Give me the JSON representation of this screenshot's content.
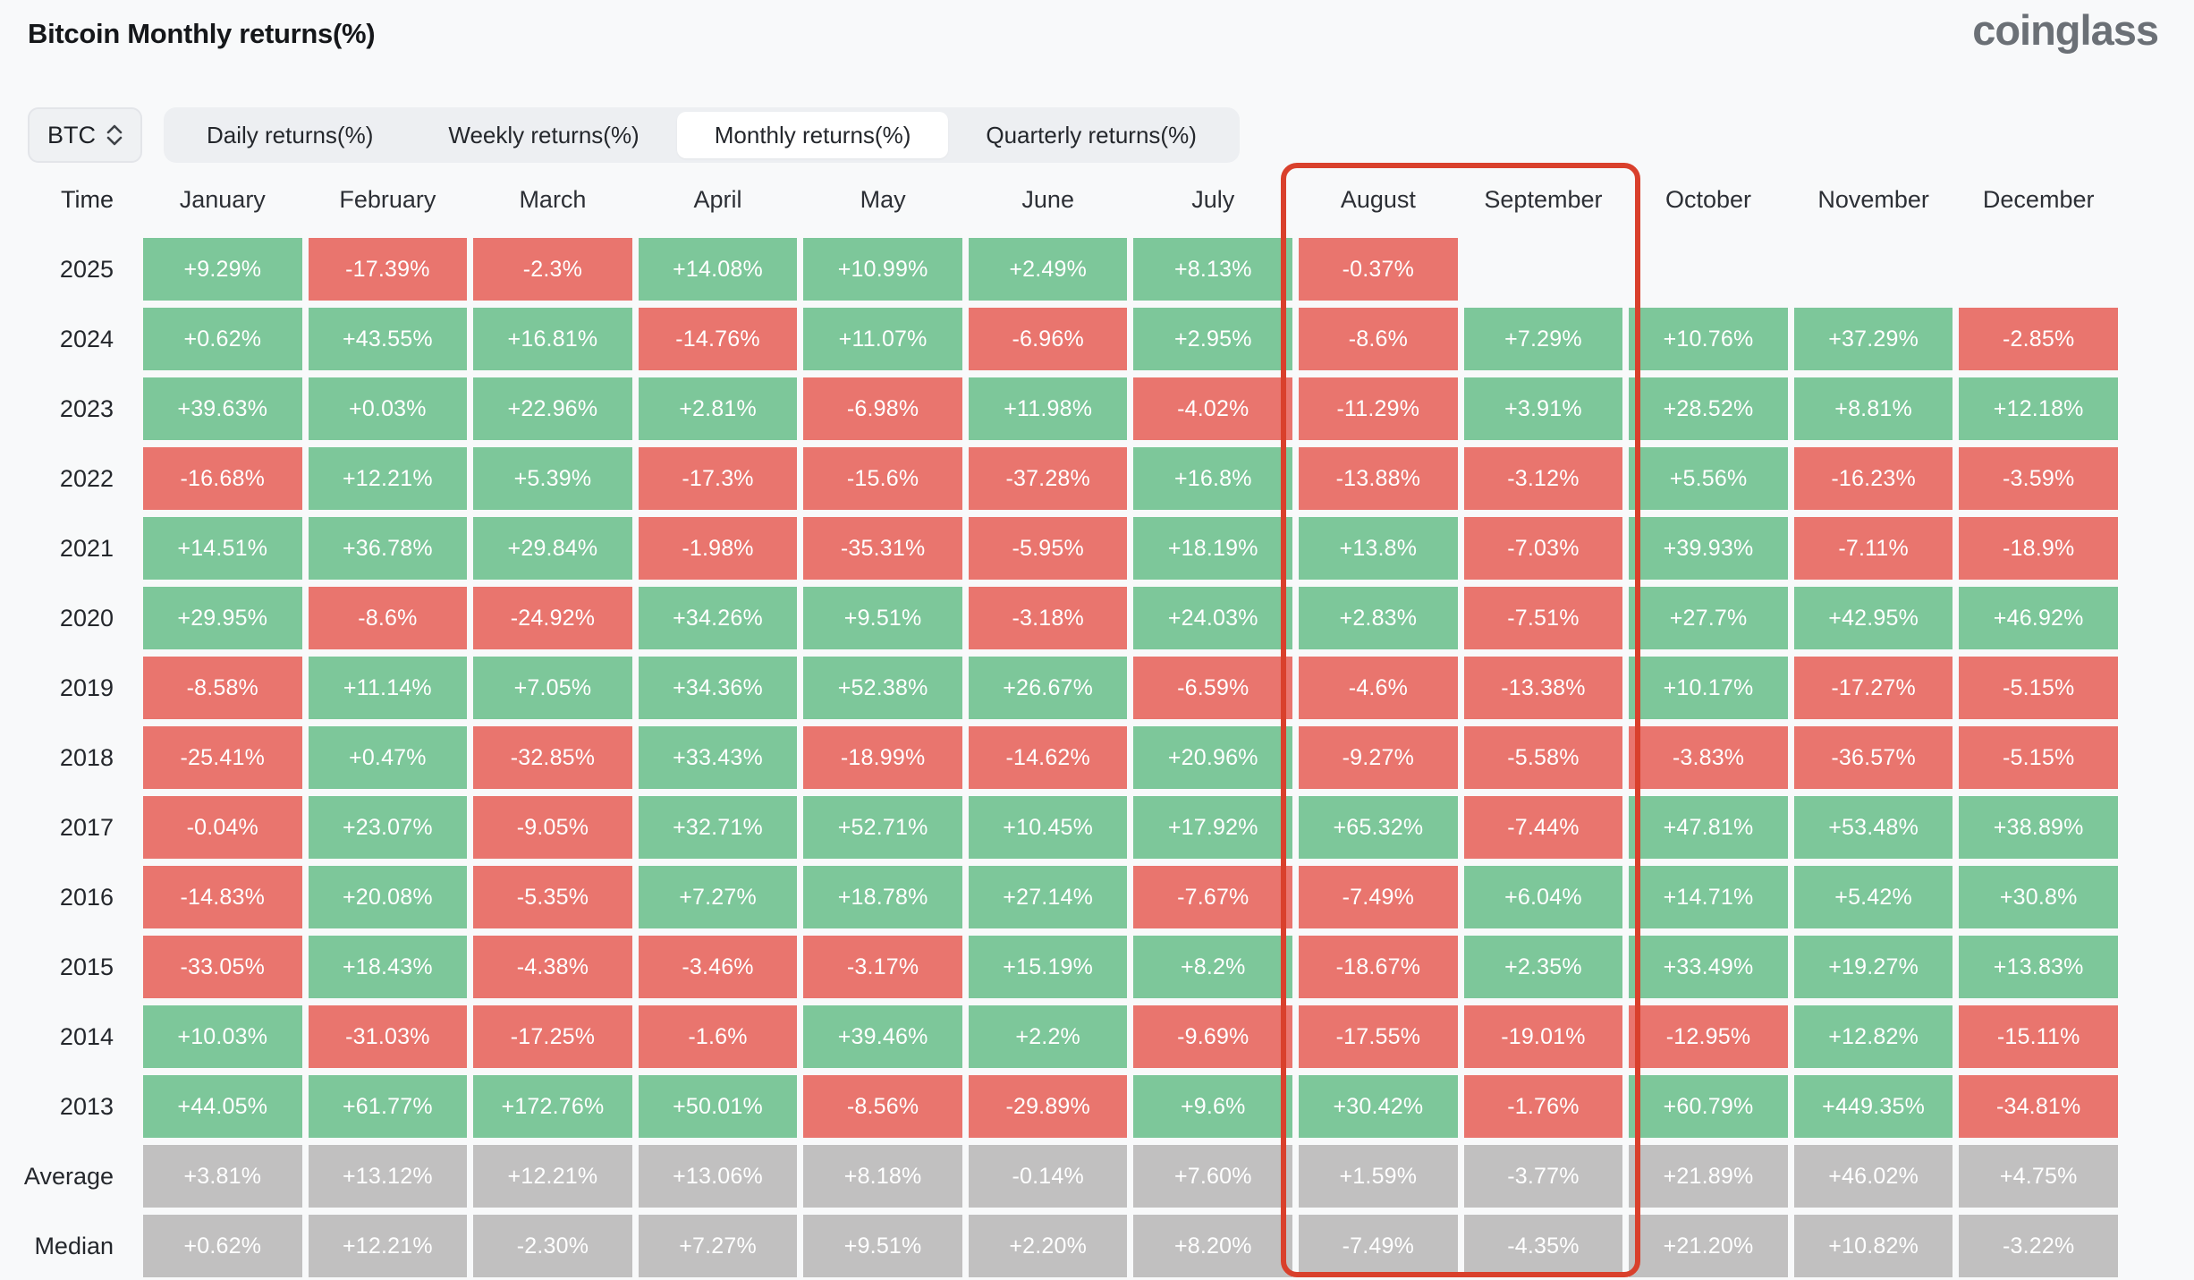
{
  "page": {
    "title": "Bitcoin Monthly returns(%)",
    "logo_text": "coinglass"
  },
  "controls": {
    "symbol_select": {
      "value": "BTC"
    },
    "tabs": [
      {
        "label": "Daily returns(%)",
        "active": false
      },
      {
        "label": "Weekly returns(%)",
        "active": false
      },
      {
        "label": "Monthly returns(%)",
        "active": true
      },
      {
        "label": "Quarterly returns(%)",
        "active": false
      }
    ]
  },
  "chart_data": {
    "type": "heatmap",
    "title": "Bitcoin Monthly returns(%)",
    "row_header_label": "Time",
    "columns": [
      "January",
      "February",
      "March",
      "April",
      "May",
      "June",
      "July",
      "August",
      "September",
      "October",
      "November",
      "December"
    ],
    "rows": [
      {
        "label": "2025",
        "type": "year",
        "values": [
          "+9.29%",
          "-17.39%",
          "-2.3%",
          "+14.08%",
          "+10.99%",
          "+2.49%",
          "+8.13%",
          "-0.37%",
          null,
          null,
          null,
          null
        ]
      },
      {
        "label": "2024",
        "type": "year",
        "values": [
          "+0.62%",
          "+43.55%",
          "+16.81%",
          "-14.76%",
          "+11.07%",
          "-6.96%",
          "+2.95%",
          "-8.6%",
          "+7.29%",
          "+10.76%",
          "+37.29%",
          "-2.85%"
        ]
      },
      {
        "label": "2023",
        "type": "year",
        "values": [
          "+39.63%",
          "+0.03%",
          "+22.96%",
          "+2.81%",
          "-6.98%",
          "+11.98%",
          "-4.02%",
          "-11.29%",
          "+3.91%",
          "+28.52%",
          "+8.81%",
          "+12.18%"
        ]
      },
      {
        "label": "2022",
        "type": "year",
        "values": [
          "-16.68%",
          "+12.21%",
          "+5.39%",
          "-17.3%",
          "-15.6%",
          "-37.28%",
          "+16.8%",
          "-13.88%",
          "-3.12%",
          "+5.56%",
          "-16.23%",
          "-3.59%"
        ]
      },
      {
        "label": "2021",
        "type": "year",
        "values": [
          "+14.51%",
          "+36.78%",
          "+29.84%",
          "-1.98%",
          "-35.31%",
          "-5.95%",
          "+18.19%",
          "+13.8%",
          "-7.03%",
          "+39.93%",
          "-7.11%",
          "-18.9%"
        ]
      },
      {
        "label": "2020",
        "type": "year",
        "values": [
          "+29.95%",
          "-8.6%",
          "-24.92%",
          "+34.26%",
          "+9.51%",
          "-3.18%",
          "+24.03%",
          "+2.83%",
          "-7.51%",
          "+27.7%",
          "+42.95%",
          "+46.92%"
        ]
      },
      {
        "label": "2019",
        "type": "year",
        "values": [
          "-8.58%",
          "+11.14%",
          "+7.05%",
          "+34.36%",
          "+52.38%",
          "+26.67%",
          "-6.59%",
          "-4.6%",
          "-13.38%",
          "+10.17%",
          "-17.27%",
          "-5.15%"
        ]
      },
      {
        "label": "2018",
        "type": "year",
        "values": [
          "-25.41%",
          "+0.47%",
          "-32.85%",
          "+33.43%",
          "-18.99%",
          "-14.62%",
          "+20.96%",
          "-9.27%",
          "-5.58%",
          "-3.83%",
          "-36.57%",
          "-5.15%"
        ]
      },
      {
        "label": "2017",
        "type": "year",
        "values": [
          "-0.04%",
          "+23.07%",
          "-9.05%",
          "+32.71%",
          "+52.71%",
          "+10.45%",
          "+17.92%",
          "+65.32%",
          "-7.44%",
          "+47.81%",
          "+53.48%",
          "+38.89%"
        ]
      },
      {
        "label": "2016",
        "type": "year",
        "values": [
          "-14.83%",
          "+20.08%",
          "-5.35%",
          "+7.27%",
          "+18.78%",
          "+27.14%",
          "-7.67%",
          "-7.49%",
          "+6.04%",
          "+14.71%",
          "+5.42%",
          "+30.8%"
        ]
      },
      {
        "label": "2015",
        "type": "year",
        "values": [
          "-33.05%",
          "+18.43%",
          "-4.38%",
          "-3.46%",
          "-3.17%",
          "+15.19%",
          "+8.2%",
          "-18.67%",
          "+2.35%",
          "+33.49%",
          "+19.27%",
          "+13.83%"
        ]
      },
      {
        "label": "2014",
        "type": "year",
        "values": [
          "+10.03%",
          "-31.03%",
          "-17.25%",
          "-1.6%",
          "+39.46%",
          "+2.2%",
          "-9.69%",
          "-17.55%",
          "-19.01%",
          "-12.95%",
          "+12.82%",
          "-15.11%"
        ]
      },
      {
        "label": "2013",
        "type": "year",
        "values": [
          "+44.05%",
          "+61.77%",
          "+172.76%",
          "+50.01%",
          "-8.56%",
          "-29.89%",
          "+9.6%",
          "+30.42%",
          "-1.76%",
          "+60.79%",
          "+449.35%",
          "-34.81%"
        ]
      },
      {
        "label": "Average",
        "type": "summary",
        "values": [
          "+3.81%",
          "+13.12%",
          "+12.21%",
          "+13.06%",
          "+8.18%",
          "-0.14%",
          "+7.60%",
          "+1.59%",
          "-3.77%",
          "+21.89%",
          "+46.02%",
          "+4.75%"
        ]
      },
      {
        "label": "Median",
        "type": "summary",
        "values": [
          "+0.62%",
          "+12.21%",
          "-2.30%",
          "+7.27%",
          "+9.51%",
          "+2.20%",
          "+8.20%",
          "-7.49%",
          "-4.35%",
          "+21.20%",
          "+10.82%",
          "-3.22%"
        ]
      }
    ],
    "highlight": {
      "columns": [
        "August",
        "September"
      ],
      "color": "#d9402c"
    },
    "colors": {
      "positive": "#7dc79a",
      "negative": "#e9756e",
      "summary": "#c1c0c0"
    },
    "legend": "green = positive monthly return, red = negative monthly return, gray = Average/Median summary rows"
  }
}
